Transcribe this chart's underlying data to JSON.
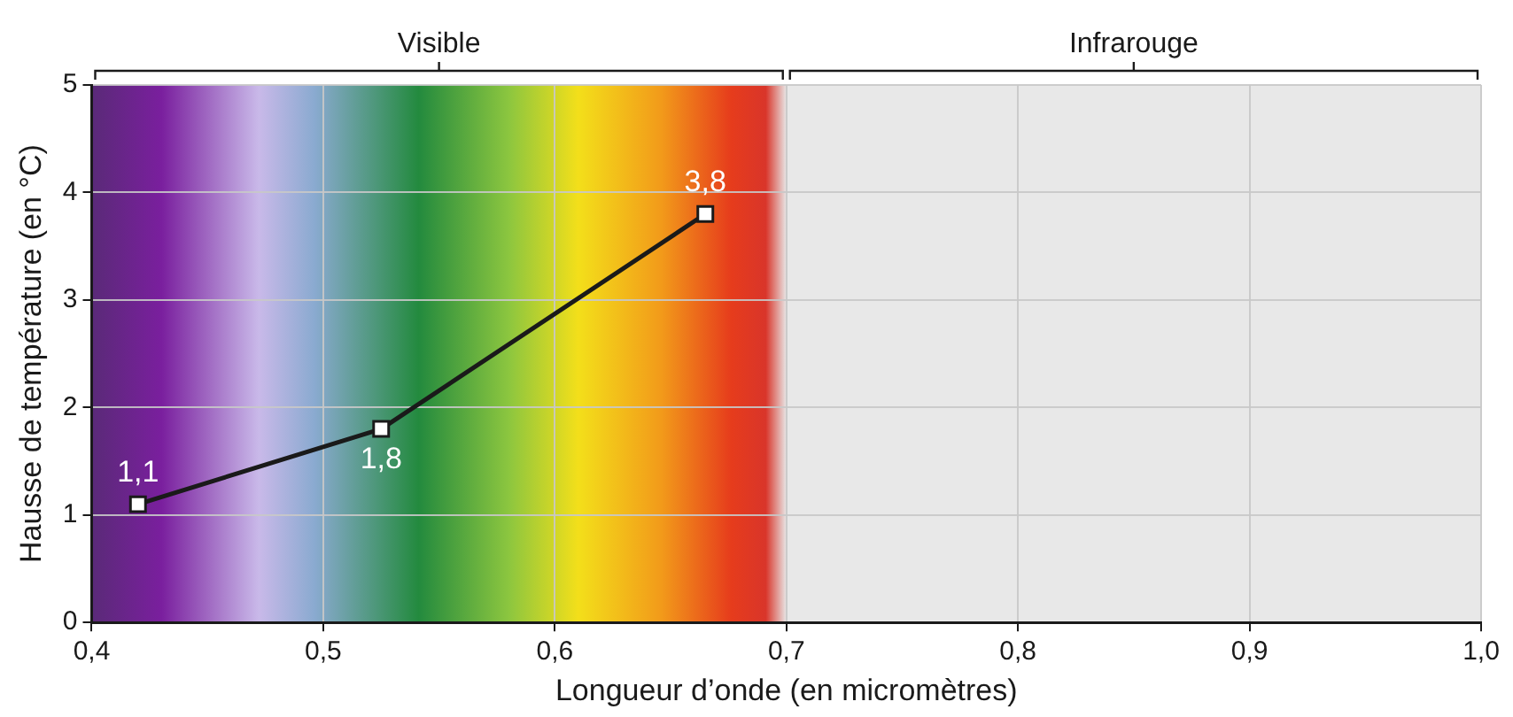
{
  "chart_data": {
    "type": "line",
    "xlabel": "Longueur d’onde (en micromètres)",
    "ylabel": "Hausse de température (en °C)",
    "series": [
      {
        "color": "#1a1a1a",
        "x": [
          0.42,
          0.525,
          0.665
        ],
        "values": [
          1.1,
          1.8,
          3.8
        ],
        "value_labels": [
          "1,1",
          "1,8",
          "3,8"
        ]
      }
    ],
    "xlim": [
      0.4,
      1.0
    ],
    "xticks": [
      {
        "value": 0.4,
        "label": "0,4"
      },
      {
        "value": 0.5,
        "label": "0,5"
      },
      {
        "value": 0.6,
        "label": "0,6"
      },
      {
        "value": 0.7,
        "label": "0,7"
      },
      {
        "value": 0.8,
        "label": "0,8"
      },
      {
        "value": 0.9,
        "label": "0,9"
      },
      {
        "value": 1.0,
        "label": "1,0"
      }
    ],
    "ylim": [
      0,
      5
    ],
    "yticks": [
      0,
      1,
      2,
      3,
      4,
      5
    ],
    "bands": [
      {
        "axis": "x",
        "from": 0.4,
        "to": 0.7,
        "label": "Visible"
      },
      {
        "axis": "x",
        "from": 0.7,
        "to": 1.0,
        "label": "Infrarouge",
        "color": "#e8e8e8"
      }
    ],
    "grid": true,
    "legend": false,
    "marker": "square",
    "line_style": "solid"
  }
}
